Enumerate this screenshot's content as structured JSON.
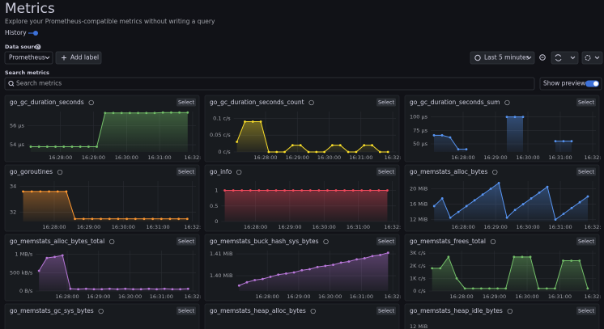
{
  "header": {
    "title": "Metrics",
    "subtitle": "Explore your Prometheus-compatible metrics without writing a query",
    "history": "History"
  },
  "toolbar": {
    "data_source_label": "Data source",
    "data_source": "Prometheus",
    "add_label": "Add label",
    "time_range": "Last 5 minutes"
  },
  "search": {
    "label": "Search metrics",
    "placeholder": "Search metrics",
    "show_previews": "Show previews"
  },
  "time_axis": {
    "xlim": [
      27,
      32.1
    ],
    "x": [
      27.1,
      27.35,
      27.6,
      27.85,
      28.1,
      28.35,
      28.6,
      28.85,
      29.1,
      29.35,
      29.6,
      29.85,
      30.1,
      30.35,
      30.6,
      30.85,
      31.1,
      31.35,
      31.6,
      31.85
    ],
    "ticks": [
      {
        "value": 28,
        "label": "16:28:00"
      },
      {
        "value": 29,
        "label": "16:29:00"
      },
      {
        "value": 30,
        "label": "16:30:00"
      },
      {
        "value": 31,
        "label": "16:31:00"
      },
      {
        "value": 32,
        "label": "16:32:"
      }
    ]
  },
  "panels": [
    {
      "title": "go_gc_duration_seconds",
      "action": "Select",
      "color": "#73bf69",
      "ylim": [
        53.25,
        57.45
      ],
      "yticks": [
        {
          "value": 56,
          "label": "56 µs"
        },
        {
          "value": 54,
          "label": "54 µs"
        }
      ],
      "values": [
        53.8,
        53.8,
        53.8,
        53.8,
        53.8,
        53.8,
        53.8,
        53.8,
        53.8,
        57.3,
        57.3,
        57.3,
        57.3,
        57.3,
        57.3,
        57.3,
        57.35,
        57.35,
        57.35,
        57.35
      ]
    },
    {
      "title": "go_gc_duration_seconds_count",
      "action": "Select",
      "color": "#fade2a",
      "ylim": [
        0,
        0.12
      ],
      "yticks": [
        {
          "value": 0.1,
          "label": "0.1 c/s"
        },
        {
          "value": 0.05,
          "label": "0.05 c/s"
        },
        {
          "value": 0,
          "label": "0 c/s"
        }
      ],
      "values": [
        0.03,
        0.09,
        0.09,
        0.09,
        0,
        0,
        0,
        0.02,
        0.02,
        0,
        0,
        0,
        0.02,
        0.02,
        0,
        0,
        0.02,
        0.02,
        0,
        0
      ]
    },
    {
      "title": "go_gc_duration_seconds_sum",
      "action": "Select",
      "color": "#5794f2",
      "ylim": [
        35,
        110
      ],
      "yticks": [
        {
          "value": 100,
          "label": "100 µs"
        },
        {
          "value": 75,
          "label": "75 µs"
        },
        {
          "value": 50,
          "label": "50 µs"
        }
      ],
      "values": [
        66,
        66,
        62,
        40,
        40,
        null,
        null,
        null,
        null,
        100,
        100,
        100,
        null,
        null,
        null,
        55,
        55,
        55,
        null,
        null
      ]
    },
    {
      "title": "go_goroutines",
      "action": "Select",
      "color": "#ff9830",
      "ylim": [
        31.3,
        34.4
      ],
      "yticks": [
        34,
        32
      ],
      "values": [
        33.6,
        33.6,
        33.6,
        33.6,
        33.6,
        33.6,
        31.5,
        31.5,
        31.5,
        31.5,
        31.5,
        31.5,
        31.5,
        31.5,
        31.5,
        31.5,
        31.5,
        31.5,
        31.5,
        31.5
      ]
    },
    {
      "title": "go_info",
      "action": "Select",
      "color": "#f2495c",
      "ylim": [
        0,
        1.3
      ],
      "yticks": [
        1,
        0.5,
        0
      ],
      "values": [
        1,
        1,
        1,
        1,
        1,
        1,
        1,
        1,
        1,
        1,
        1,
        1,
        1,
        1,
        1,
        1,
        1,
        1,
        1,
        1
      ]
    },
    {
      "title": "go_memstats_alloc_bytes",
      "action": "Select",
      "color": "#5794f2",
      "ylim": [
        11.5,
        22
      ],
      "yticks": [
        {
          "value": 20,
          "label": "20 MiB"
        },
        {
          "value": 16,
          "label": "16 MiB"
        },
        {
          "value": 12,
          "label": "12 MiB"
        }
      ],
      "values": [
        15.5,
        17.5,
        12.5,
        14,
        15.5,
        17,
        18.5,
        20,
        21.5,
        12.5,
        14.5,
        16,
        17.5,
        19,
        20.5,
        12,
        13.5,
        15,
        16.5,
        18
      ]
    },
    {
      "title": "go_memstats_alloc_bytes_total",
      "action": "Select",
      "color": "#b877d9",
      "ylim": [
        0,
        1.1
      ],
      "yticks": [
        {
          "value": 1,
          "label": "1 MB/s"
        },
        {
          "value": 0.5,
          "label": "500 kB/s"
        },
        {
          "value": 0,
          "label": "0 B/s"
        }
      ],
      "values": [
        0.55,
        0.9,
        0.93,
        0.97,
        0.06,
        0.05,
        0.06,
        0.05,
        0.05,
        0.06,
        0.05,
        0.06,
        0.05,
        0.05,
        0.06,
        0.05,
        0.06,
        0.05,
        0.05,
        0.06
      ]
    },
    {
      "title": "go_memstats_buck_hash_sys_bytes",
      "action": "Select",
      "color": "#b877d9",
      "ylim": [
        1.393,
        1.4115
      ],
      "yticks": [
        {
          "value": 1.41,
          "label": "1.41 MiB"
        },
        {
          "value": 1.4,
          "label": "1.40 MiB"
        }
      ],
      "values": [
        1.3955,
        1.397,
        1.398,
        1.3985,
        1.3995,
        1.4005,
        1.401,
        1.4015,
        1.4025,
        1.403,
        1.404,
        1.4045,
        1.405,
        1.406,
        1.4065,
        1.4075,
        1.408,
        1.409,
        1.4095,
        1.4105
      ]
    },
    {
      "title": "go_memstats_frees_total",
      "action": "Select",
      "color": "#73bf69",
      "ylim": [
        0,
        3200
      ],
      "yticks": [
        {
          "value": 3000,
          "label": "3K c/s"
        },
        {
          "value": 2000,
          "label": "2K c/s"
        },
        {
          "value": 1000,
          "label": "1K c/s"
        },
        {
          "value": 0,
          "label": "0 c/s"
        }
      ],
      "values": [
        1800,
        1800,
        2700,
        1000,
        200,
        200,
        200,
        200,
        200,
        200,
        2700,
        2700,
        2700,
        200,
        200,
        200,
        2400,
        2400,
        2400,
        200
      ]
    },
    {
      "title": "go_memstats_gc_sys_bytes",
      "action": "Select"
    },
    {
      "title": "go_memstats_heap_alloc_bytes",
      "action": "Select"
    },
    {
      "title": "go_memstats_heap_idle_bytes",
      "action": "Select",
      "yticks": [
        {
          "value": 12,
          "label": "12 MiB"
        }
      ]
    }
  ]
}
